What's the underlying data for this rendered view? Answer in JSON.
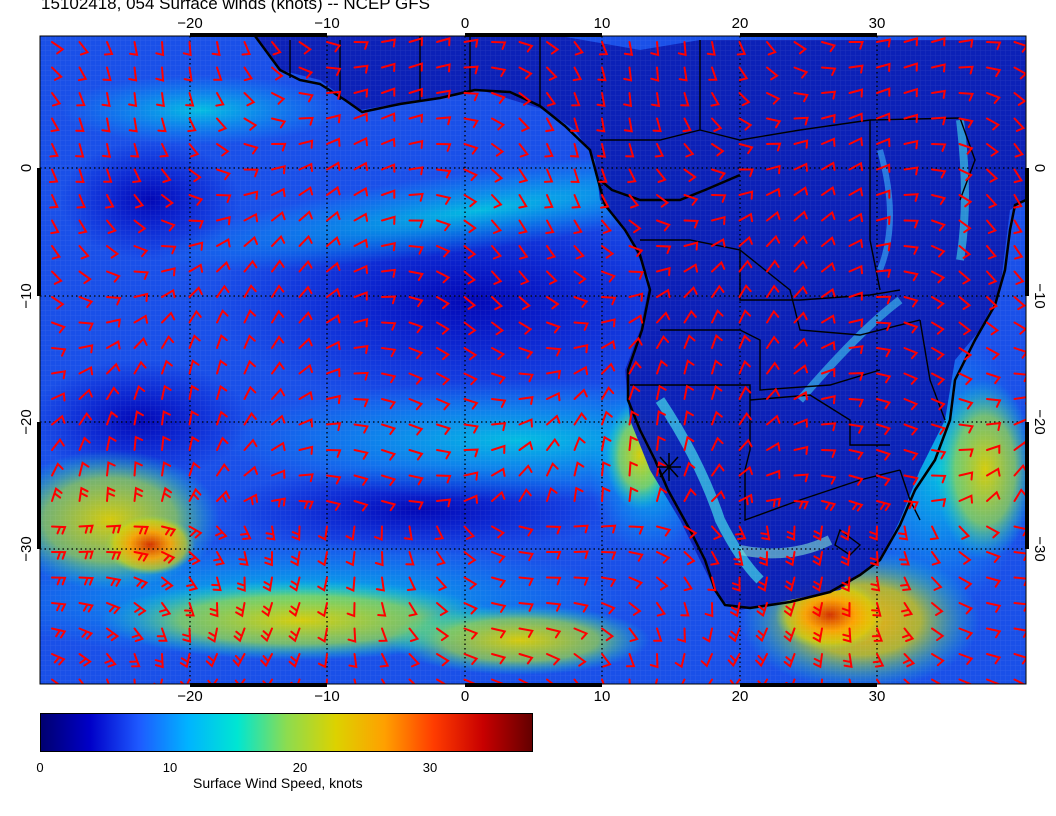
{
  "title": "15102418, 054 Surface winds (knots) -- NCEP GFS",
  "map": {
    "projection": "cylindrical",
    "lon_range": [
      -30,
      40
    ],
    "lat_range": [
      -41,
      10
    ],
    "graticule": "dotted, every 10 degrees",
    "lon_ticks": [
      -20,
      -10,
      0,
      10,
      20,
      30
    ],
    "lat_ticks": [
      0,
      -10,
      -20,
      -30
    ],
    "lon_labels": [
      "−20",
      "−10",
      "0",
      "10",
      "20",
      "30"
    ],
    "lat_labels": [
      "0",
      "−10",
      "−20",
      "−30"
    ],
    "barb_color": "#ff0000",
    "coastline_color": "#000000",
    "marker": {
      "symbol": "asterisk",
      "lon": 15,
      "lat": -24
    }
  },
  "colorbar": {
    "label": "Surface Wind Speed, knots",
    "range": [
      0,
      38
    ],
    "ticks": [
      0,
      10,
      20,
      30
    ],
    "tick_labels": [
      "0",
      "10",
      "20",
      "30"
    ],
    "colors": [
      "#000070",
      "#0000c8",
      "#1e5aff",
      "#00b4ff",
      "#00e6d2",
      "#8cdc50",
      "#dcd200",
      "#ffa000",
      "#ff3c00",
      "#c80000",
      "#640000"
    ]
  }
}
